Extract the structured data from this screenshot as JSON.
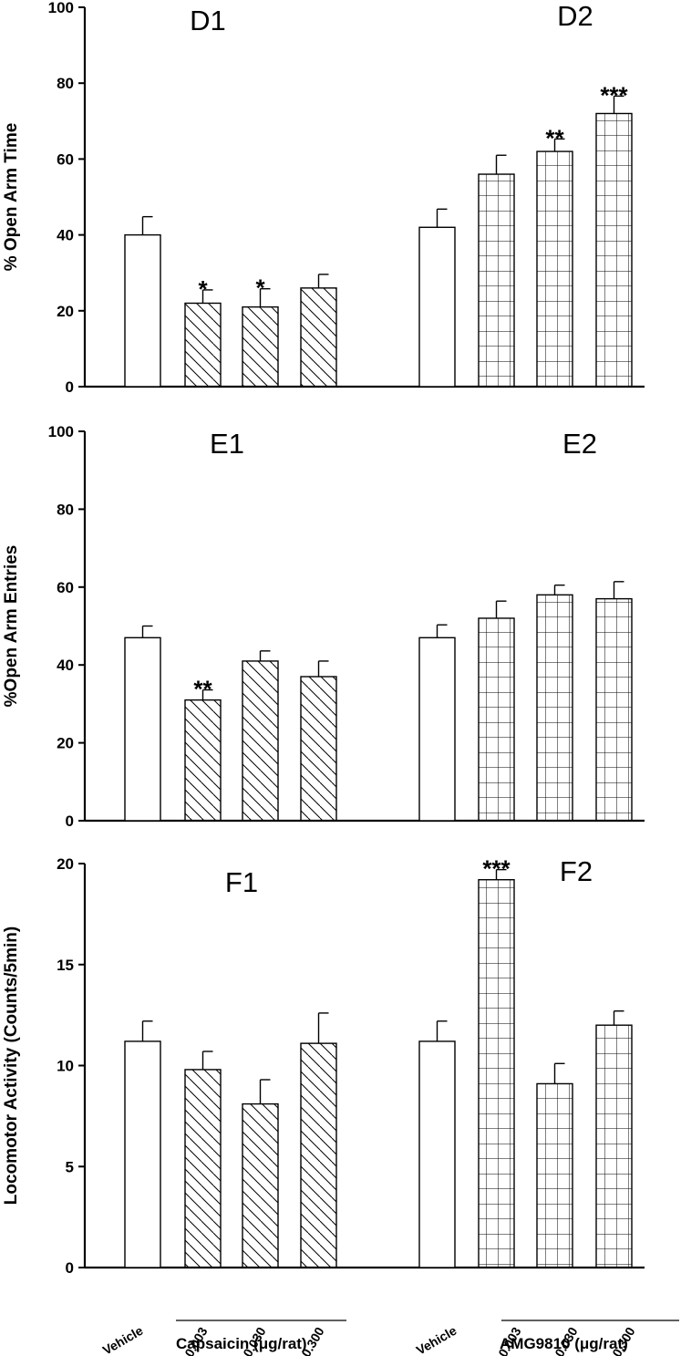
{
  "chart_data": [
    {
      "type": "bar",
      "ylabel": "% Open Arm Time",
      "ylim": [
        0,
        100
      ],
      "yticks": [
        0,
        20,
        40,
        60,
        80,
        100
      ],
      "groups": [
        {
          "panel_label": "D1",
          "treatment": "capsaicin",
          "pattern": "diagonal",
          "bars": [
            {
              "value": 40,
              "error": 4.8,
              "sig": ""
            },
            {
              "value": 22,
              "error": 3.5,
              "sig": "*"
            },
            {
              "value": 21,
              "error": 4.8,
              "sig": "*"
            },
            {
              "value": 26,
              "error": 3.6,
              "sig": ""
            }
          ]
        },
        {
          "panel_label": "D2",
          "treatment": "amg9810",
          "pattern": "grid",
          "bars": [
            {
              "value": 42,
              "error": 4.8,
              "sig": ""
            },
            {
              "value": 56,
              "error": 5.0,
              "sig": ""
            },
            {
              "value": 62,
              "error": 3.3,
              "sig": "**"
            },
            {
              "value": 72,
              "error": 4.6,
              "sig": "***"
            }
          ]
        }
      ]
    },
    {
      "type": "bar",
      "ylabel": "%Open Arm Entries",
      "ylim": [
        0,
        100
      ],
      "yticks": [
        0,
        20,
        40,
        60,
        80,
        100
      ],
      "groups": [
        {
          "panel_label": "E1",
          "treatment": "capsaicin",
          "pattern": "diagonal",
          "bars": [
            {
              "value": 47,
              "error": 3.0,
              "sig": ""
            },
            {
              "value": 31,
              "error": 2.6,
              "sig": "**"
            },
            {
              "value": 41,
              "error": 2.6,
              "sig": ""
            },
            {
              "value": 37,
              "error": 4.0,
              "sig": ""
            }
          ]
        },
        {
          "panel_label": "E2",
          "treatment": "amg9810",
          "pattern": "grid",
          "bars": [
            {
              "value": 47,
              "error": 3.3,
              "sig": ""
            },
            {
              "value": 52,
              "error": 4.4,
              "sig": ""
            },
            {
              "value": 58,
              "error": 2.5,
              "sig": ""
            },
            {
              "value": 57,
              "error": 4.4,
              "sig": ""
            }
          ]
        }
      ]
    },
    {
      "type": "bar",
      "ylabel": "Locomotor Activity (Counts/5min)",
      "ylim": [
        0,
        20
      ],
      "yticks": [
        0,
        5,
        10,
        15,
        20
      ],
      "groups": [
        {
          "panel_label": "F1",
          "treatment": "capsaicin",
          "pattern": "diagonal",
          "bars": [
            {
              "value": 11.2,
              "error": 1.0,
              "sig": ""
            },
            {
              "value": 9.8,
              "error": 0.9,
              "sig": ""
            },
            {
              "value": 8.1,
              "error": 1.2,
              "sig": ""
            },
            {
              "value": 11.1,
              "error": 1.5,
              "sig": ""
            }
          ]
        },
        {
          "panel_label": "F2",
          "treatment": "amg9810",
          "pattern": "grid",
          "bars": [
            {
              "value": 11.2,
              "error": 1.0,
              "sig": ""
            },
            {
              "value": 19.2,
              "error": 0.5,
              "sig": "***"
            },
            {
              "value": 9.1,
              "error": 1.0,
              "sig": ""
            },
            {
              "value": 12.0,
              "error": 0.7,
              "sig": ""
            }
          ]
        }
      ]
    }
  ],
  "x_axis": {
    "categories": [
      "Vehicle",
      "0.003",
      "0.030",
      "0.300",
      "Vehicle",
      "0.003",
      "0.030",
      "0.300"
    ],
    "group_labels": [
      "Capsaicin (μg/rat)",
      "AMG9810 (μg/rat)"
    ]
  },
  "colors": {
    "bar_fill": "#ffffff",
    "stroke": "#000000"
  }
}
